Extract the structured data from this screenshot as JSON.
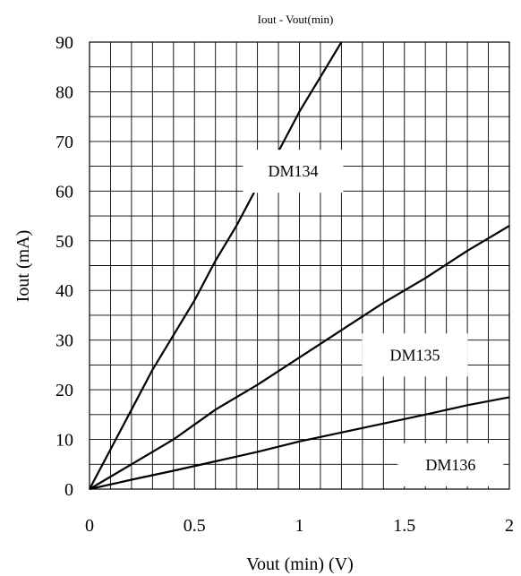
{
  "chart_data": {
    "type": "line",
    "title": "Iout - Vout(min)",
    "xlabel": "Vout (min) (V)",
    "ylabel": "Iout (mA)",
    "xlim": [
      0,
      2
    ],
    "ylim": [
      0,
      90
    ],
    "xticks": [
      0,
      0.5,
      1,
      1.5,
      2
    ],
    "xtick_labels": [
      "0",
      "0.5",
      "1",
      "1.5",
      "2"
    ],
    "yticks": [
      0,
      10,
      20,
      30,
      40,
      50,
      60,
      70,
      80,
      90
    ],
    "ytick_labels": [
      "0",
      "10",
      "20",
      "30",
      "40",
      "50",
      "60",
      "70",
      "80",
      "90"
    ],
    "grid": true,
    "series": [
      {
        "name": "DM134",
        "x": [
          0,
          0.1,
          0.2,
          0.3,
          0.4,
          0.5,
          0.6,
          0.7,
          0.8,
          0.9,
          1.0,
          1.1,
          1.2
        ],
        "y": [
          0,
          8,
          16,
          24,
          31,
          38,
          46,
          53,
          61,
          68,
          76,
          83,
          90
        ]
      },
      {
        "name": "DM135",
        "x": [
          0,
          0.2,
          0.4,
          0.6,
          0.7,
          0.8,
          1.0,
          1.2,
          1.4,
          1.6,
          1.8,
          2.0
        ],
        "y": [
          0,
          5,
          10,
          16,
          18.5,
          21,
          26.5,
          32,
          37.5,
          42.5,
          48,
          53
        ]
      },
      {
        "name": "DM136",
        "x": [
          0,
          0.2,
          0.4,
          0.6,
          0.8,
          1.0,
          1.2,
          1.4,
          1.6,
          1.8,
          2.0
        ],
        "y": [
          0,
          1.9,
          3.7,
          5.6,
          7.5,
          9.6,
          11.4,
          13.2,
          15.0,
          16.9,
          18.5
        ]
      }
    ]
  }
}
